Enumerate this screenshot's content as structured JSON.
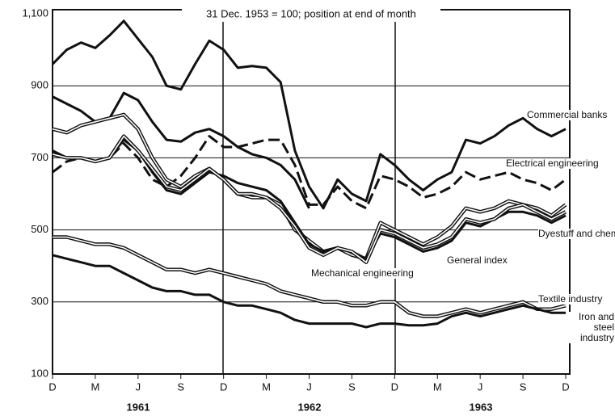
{
  "chart_data": {
    "type": "line",
    "title": "31 Dec. 1953 = 100; position at end of month",
    "categories": [
      "D",
      null,
      null,
      "M",
      null,
      null,
      "J",
      null,
      null,
      "S",
      null,
      null,
      "D",
      null,
      null,
      "M",
      null,
      null,
      "J",
      null,
      null,
      "S",
      null,
      null,
      "D",
      null,
      null,
      "M",
      null,
      null,
      "J",
      null,
      null,
      "S",
      null,
      null,
      "D"
    ],
    "annotations": [
      "1961",
      "1962",
      "1963"
    ],
    "ylim": [
      100,
      1100
    ],
    "yticks": [
      100,
      300,
      500,
      700,
      900,
      {
        "value": 1100,
        "label": "1,100"
      }
    ],
    "grid": true,
    "series": [
      {
        "name": "Commercial banks",
        "color": "#111111",
        "style": "solid",
        "values": [
          960,
          1000,
          1020,
          1005,
          1040,
          1080,
          1030,
          980,
          900,
          890,
          960,
          1025,
          1000,
          950,
          955,
          950,
          910,
          720,
          620,
          560,
          640,
          600,
          580,
          710,
          680,
          640,
          610,
          640,
          660,
          750,
          740,
          760,
          790,
          810,
          780,
          760,
          780
        ]
      },
      {
        "color": "#111111",
        "style": "solid",
        "values": [
          870,
          850,
          830,
          800,
          810,
          880,
          860,
          800,
          750,
          745,
          770,
          780,
          760,
          730,
          710,
          700,
          680,
          640,
          560,
          null,
          null,
          null,
          null,
          null,
          null,
          null,
          null,
          null,
          null,
          null,
          null,
          null,
          null,
          null,
          null,
          null,
          null
        ]
      },
      {
        "name": "Electrical engineering",
        "color": "#111111",
        "style": "dashed",
        "values": [
          660,
          690,
          700,
          690,
          700,
          740,
          700,
          640,
          620,
          650,
          700,
          760,
          730,
          730,
          740,
          750,
          750,
          680,
          570,
          570,
          620,
          580,
          560,
          650,
          640,
          620,
          590,
          600,
          620,
          660,
          640,
          650,
          660,
          640,
          630,
          610,
          640
        ]
      },
      {
        "name": "Dyestuff and chemical shares",
        "color": "#111111",
        "style": "double",
        "values": [
          780,
          770,
          790,
          800,
          810,
          820,
          780,
          700,
          640,
          620,
          650,
          670,
          640,
          600,
          590,
          590,
          570,
          500,
          470,
          440,
          450,
          430,
          420,
          520,
          500,
          480,
          460,
          480,
          510,
          560,
          550,
          560,
          580,
          570,
          560,
          540,
          570
        ]
      },
      {
        "name": "General index",
        "color": "#111111",
        "style": "solid",
        "values": [
          720,
          700,
          700,
          690,
          700,
          750,
          720,
          660,
          610,
          600,
          630,
          660,
          650,
          630,
          620,
          610,
          580,
          520,
          460,
          440,
          450,
          440,
          420,
          490,
          480,
          460,
          440,
          450,
          470,
          520,
          510,
          530,
          550,
          550,
          540,
          520,
          540
        ]
      },
      {
        "name": "Mechanical engineering",
        "color": "#111111",
        "style": "double",
        "values": [
          710,
          700,
          700,
          690,
          700,
          760,
          720,
          670,
          620,
          610,
          640,
          670,
          640,
          600,
          600,
          590,
          560,
          510,
          450,
          430,
          450,
          440,
          410,
          500,
          490,
          470,
          450,
          460,
          480,
          530,
          520,
          530,
          560,
          570,
          550,
          530,
          550
        ]
      },
      {
        "name": "Textile industry",
        "color": "#111111",
        "style": "double",
        "values": [
          480,
          480,
          470,
          460,
          460,
          450,
          430,
          410,
          390,
          390,
          380,
          390,
          380,
          370,
          360,
          350,
          330,
          320,
          310,
          300,
          300,
          290,
          290,
          300,
          300,
          270,
          260,
          260,
          270,
          280,
          270,
          280,
          290,
          300,
          280,
          280,
          290
        ]
      },
      {
        "name": "Iron and steel industry",
        "color": "#111111",
        "style": "solid",
        "values": [
          430,
          420,
          410,
          400,
          400,
          380,
          360,
          340,
          330,
          330,
          320,
          320,
          300,
          290,
          290,
          280,
          270,
          250,
          240,
          240,
          240,
          240,
          230,
          240,
          240,
          235,
          235,
          240,
          260,
          270,
          260,
          270,
          280,
          290,
          280,
          270,
          270
        ]
      }
    ]
  }
}
